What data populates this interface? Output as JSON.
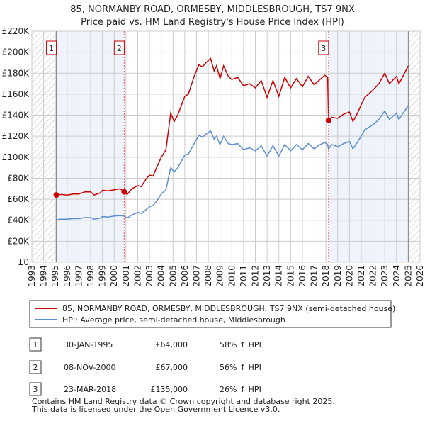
{
  "chart_data": {
    "type": "line",
    "title": "85, NORMANBY ROAD, ORMESBY, MIDDLESBROUGH, TS7 9NX",
    "subtitle": "Price paid vs. HM Land Registry's House Price Index (HPI)",
    "xlim": [
      1993,
      2026
    ],
    "ylim": [
      0,
      220000
    ],
    "x_ticks": [
      "1993",
      "1994",
      "1995",
      "1996",
      "1997",
      "1998",
      "1999",
      "2000",
      "2001",
      "2002",
      "2003",
      "2004",
      "2005",
      "2006",
      "2007",
      "2008",
      "2009",
      "2010",
      "2011",
      "2012",
      "2013",
      "2014",
      "2015",
      "2016",
      "2017",
      "2018",
      "2019",
      "2020",
      "2021",
      "2022",
      "2023",
      "2024",
      "2025",
      "2026"
    ],
    "y_ticks": [
      {
        "v": 0,
        "label": "£0"
      },
      {
        "v": 20000,
        "label": "£20K"
      },
      {
        "v": 40000,
        "label": "£40K"
      },
      {
        "v": 60000,
        "label": "£60K"
      },
      {
        "v": 80000,
        "label": "£80K"
      },
      {
        "v": 100000,
        "label": "£100K"
      },
      {
        "v": 120000,
        "label": "£120K"
      },
      {
        "v": 140000,
        "label": "£140K"
      },
      {
        "v": 160000,
        "label": "£160K"
      },
      {
        "v": 180000,
        "label": "£180K"
      },
      {
        "v": 200000,
        "label": "£200K"
      },
      {
        "v": 220000,
        "label": "£220K"
      }
    ],
    "grid": true,
    "shaded_ranges": [
      [
        1995.08,
        2000.85
      ],
      [
        2018.22,
        2025.0
      ]
    ],
    "hatched_ranges": [
      [
        1993,
        1995.08
      ],
      [
        2025.0,
        2026
      ]
    ],
    "x": [
      1995.08,
      1995.5,
      1996,
      1996.5,
      1997,
      1997.5,
      1998,
      1998.3,
      1998.8,
      1999,
      1999.5,
      2000,
      2000.5,
      2000.85,
      2001.1,
      2001.5,
      2002,
      2002.3,
      2002.7,
      2003,
      2003.3,
      2003.6,
      2004,
      2004.4,
      2004.8,
      2005.1,
      2005.4,
      2006,
      2006.3,
      2006.8,
      2007.2,
      2007.5,
      2007.8,
      2008.2,
      2008.5,
      2008.7,
      2009,
      2009.3,
      2009.7,
      2010,
      2010.5,
      2011,
      2011.5,
      2012,
      2012.5,
      2013,
      2013.5,
      2014,
      2014.5,
      2015,
      2015.5,
      2016,
      2016.5,
      2017,
      2017.5,
      2017.9,
      2018.15,
      2018.22,
      2018.5,
      2019,
      2019.5,
      2020,
      2020.3,
      2020.6,
      2021,
      2021.3,
      2022,
      2022.5,
      2023,
      2023.4,
      2024,
      2024.2,
      2024.5,
      2025
    ],
    "series": [
      {
        "name": "85, NORMANBY ROAD, ORMESBY, MIDDLESBROUGH, TS7 9NX (semi-detached house)",
        "color": "#cc0000",
        "values": [
          64,
          64.5,
          64,
          65,
          65,
          67,
          67,
          64,
          66,
          68.5,
          68,
          69,
          70,
          67,
          64.5,
          70,
          73,
          72,
          79,
          83,
          82,
          90,
          100,
          107,
          142,
          134,
          140,
          158,
          160,
          177,
          188,
          186,
          190,
          194,
          182,
          187,
          175,
          187,
          177,
          174,
          176,
          168,
          170,
          166,
          173,
          157,
          173,
          158,
          176,
          166,
          175,
          167,
          177,
          169,
          174,
          178,
          176,
          135,
          138,
          137,
          141,
          143,
          134,
          140,
          150,
          157,
          164,
          170,
          180,
          170,
          177,
          170,
          176,
          187
        ]
      },
      {
        "name": "HPI: Average price, semi-detached house, Middlesbrough",
        "color": "#5b8fd0",
        "values": [
          40.5,
          41,
          41,
          41.5,
          41.5,
          42.5,
          42.5,
          41,
          42,
          43.5,
          43,
          44,
          44.5,
          44,
          42,
          45,
          47.5,
          46.5,
          50,
          53,
          54,
          58,
          65,
          69,
          90,
          86,
          90,
          102,
          103,
          113,
          121,
          119,
          122,
          125,
          117,
          120,
          112,
          120,
          113,
          112,
          113,
          107,
          109,
          106,
          111,
          101,
          111,
          101,
          112,
          106,
          112,
          107,
          113,
          108,
          112,
          114,
          112,
          108,
          112,
          110,
          113,
          115,
          108,
          113,
          120,
          126,
          131,
          136,
          144,
          136,
          142,
          136,
          141,
          149
        ]
      }
    ],
    "value_unit": "thousands GBP",
    "sales": [
      {
        "num": "1",
        "x": 1995.08,
        "value": 64000,
        "date": "30-JAN-1995",
        "price": "£64,000",
        "hpi": "58% ↑ HPI"
      },
      {
        "num": "2",
        "x": 2000.85,
        "value": 67000,
        "date": "08-NOV-2000",
        "price": "£67,000",
        "hpi": "56% ↑ HPI"
      },
      {
        "num": "3",
        "x": 2018.22,
        "value": 135000,
        "date": "23-MAR-2018",
        "price": "£135,000",
        "hpi": "26% ↑ HPI"
      }
    ],
    "legend_placement": "below"
  },
  "footer": {
    "line1": "Contains HM Land Registry data © Crown copyright and database right 2025.",
    "line2": "This data is licensed under the Open Government Licence v3.0."
  }
}
